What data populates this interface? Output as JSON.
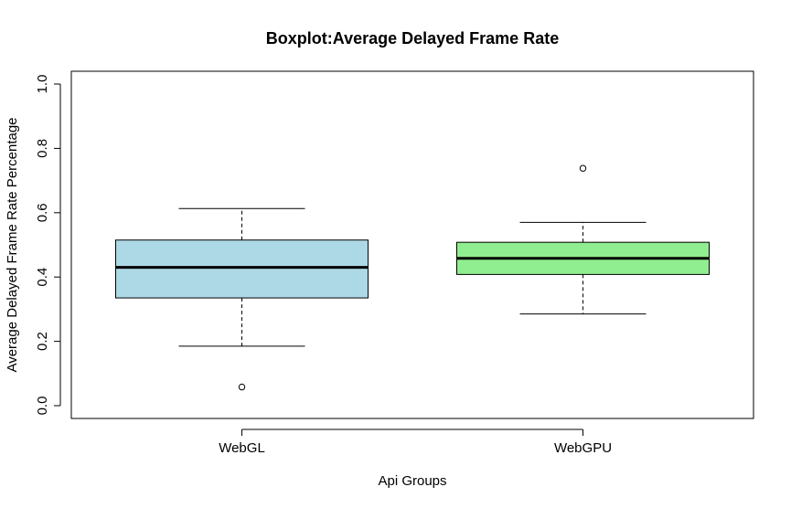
{
  "chart_data": {
    "type": "boxplot",
    "title": "Boxplot:Average Delayed Frame Rate",
    "xlabel": "Api Groups",
    "ylabel": "Average Delayed Frame Rate Percentage",
    "ylim": [
      0.0,
      1.0
    ],
    "yticks": [
      "0.0",
      "0.2",
      "0.4",
      "0.6",
      "0.8",
      "1.0"
    ],
    "categories": [
      "WebGL",
      "WebGPU"
    ],
    "boxes": [
      {
        "category": "WebGL",
        "lower_whisker": 0.185,
        "q1": 0.335,
        "median": 0.43,
        "q3": 0.515,
        "upper_whisker": 0.613,
        "outliers": [
          0.058
        ],
        "color": "#add8e6"
      },
      {
        "category": "WebGPU",
        "lower_whisker": 0.285,
        "q1": 0.408,
        "median": 0.458,
        "q3": 0.508,
        "upper_whisker": 0.57,
        "outliers": [
          0.738
        ],
        "color": "#90ee90"
      }
    ],
    "grid": false,
    "legend": "none"
  }
}
